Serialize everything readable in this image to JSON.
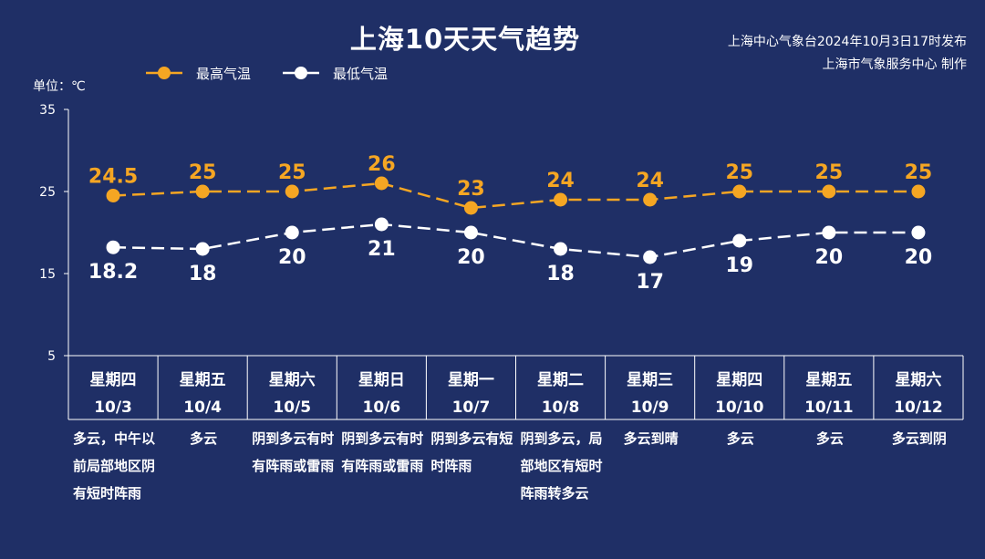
{
  "page": {
    "title": "上海10天天气趋势",
    "source_line1": "上海中心气象台2024年10月3日17时发布",
    "source_line2": "上海市气象服务中心 制作",
    "unit_label": "单位：℃"
  },
  "chart_data": {
    "type": "line",
    "title": "上海10天天气趋势",
    "ylabel": "单位：℃",
    "ylim": [
      5,
      35
    ],
    "yticks": [
      5,
      15,
      25,
      35
    ],
    "legend_position": "top-left",
    "categories": [
      "星期四 10/3",
      "星期五 10/4",
      "星期六 10/5",
      "星期日 10/6",
      "星期一 10/7",
      "星期二 10/8",
      "星期三 10/9",
      "星期四 10/10",
      "星期五 10/11",
      "星期六 10/12"
    ],
    "weekdays": [
      "星期四",
      "星期五",
      "星期六",
      "星期日",
      "星期一",
      "星期二",
      "星期三",
      "星期四",
      "星期五",
      "星期六"
    ],
    "dates": [
      "10/3",
      "10/4",
      "10/5",
      "10/6",
      "10/7",
      "10/8",
      "10/9",
      "10/10",
      "10/11",
      "10/12"
    ],
    "series": [
      {
        "name": "最高气温",
        "color": "#f5a623",
        "values": [
          24.5,
          25,
          25,
          26,
          23,
          24,
          24,
          25,
          25,
          25
        ]
      },
      {
        "name": "最低气温",
        "color": "#ffffff",
        "values": [
          18.2,
          18,
          20,
          21,
          20,
          18,
          17,
          19,
          20,
          20
        ]
      }
    ],
    "weather": [
      "多云，中午以前局部地区阴有短时阵雨",
      "多云",
      "阴到多云有时有阵雨或雷雨",
      "阴到多云有时有阵雨或雷雨",
      "阴到多云有短时阵雨",
      "阴到多云，局部地区有短时阵雨转多云",
      "多云到晴",
      "多云",
      "多云",
      "多云到阴"
    ]
  }
}
